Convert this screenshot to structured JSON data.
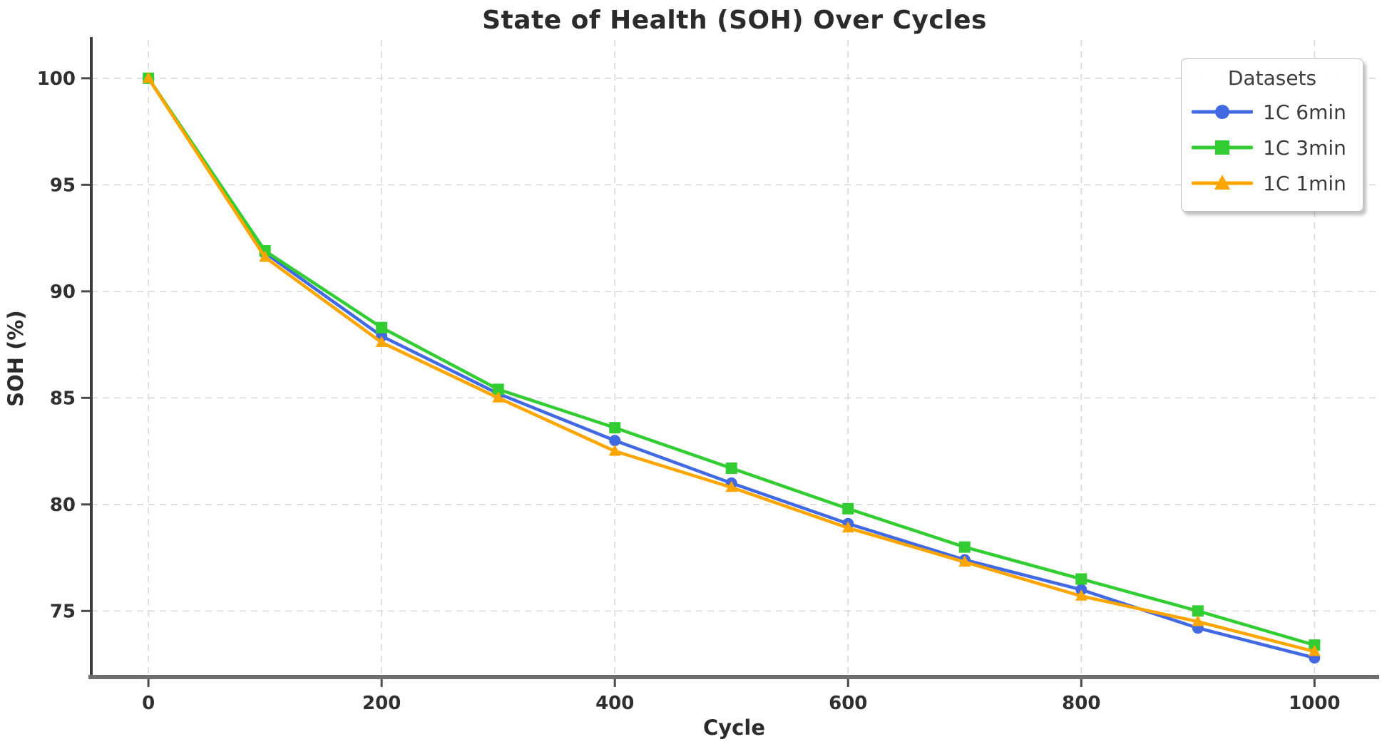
{
  "title": "State of Health (SOH) Over Cycles",
  "xlabel": "Cycle",
  "ylabel": "SOH (%)",
  "legend": {
    "title": "Datasets",
    "position": "top-right"
  },
  "colors": {
    "series_blue": "#4169E1",
    "series_green": "#32CD32",
    "series_orange": "#FFA500",
    "gridline": "#d9d9d9",
    "left_spine": "#3c3c3c",
    "bottom_spine": "#6e6e6e",
    "text": "#2f2f2f"
  },
  "chart_data": {
    "type": "line",
    "title": "State of Health (SOH) Over Cycles",
    "xlabel": "Cycle",
    "ylabel": "SOH (%)",
    "x": [
      0,
      100,
      200,
      300,
      400,
      500,
      600,
      700,
      800,
      900,
      1000
    ],
    "series": [
      {
        "name": "1C 6min",
        "color": "#4169E1",
        "marker": "circle",
        "values": [
          100,
          91.8,
          87.9,
          85.2,
          83.0,
          81.0,
          79.1,
          77.4,
          76.0,
          74.2,
          72.8
        ]
      },
      {
        "name": "1C 3min",
        "color": "#32CD32",
        "marker": "square",
        "values": [
          100,
          91.9,
          88.3,
          85.4,
          83.6,
          81.7,
          79.8,
          78.0,
          76.5,
          75.0,
          73.4
        ]
      },
      {
        "name": "1C 1min",
        "color": "#FFA500",
        "marker": "triangle",
        "values": [
          100,
          91.6,
          87.6,
          85.0,
          82.5,
          80.8,
          78.9,
          77.3,
          75.7,
          74.5,
          73.1
        ]
      }
    ],
    "x_ticks": [
      0,
      200,
      400,
      600,
      800,
      1000
    ],
    "y_ticks": [
      75,
      80,
      85,
      90,
      95,
      100
    ],
    "x_range": [
      -49,
      1053
    ],
    "y_range": [
      71.9,
      101.8
    ],
    "grid": true,
    "grid_style": "dashed",
    "legend_position": "top-right"
  }
}
